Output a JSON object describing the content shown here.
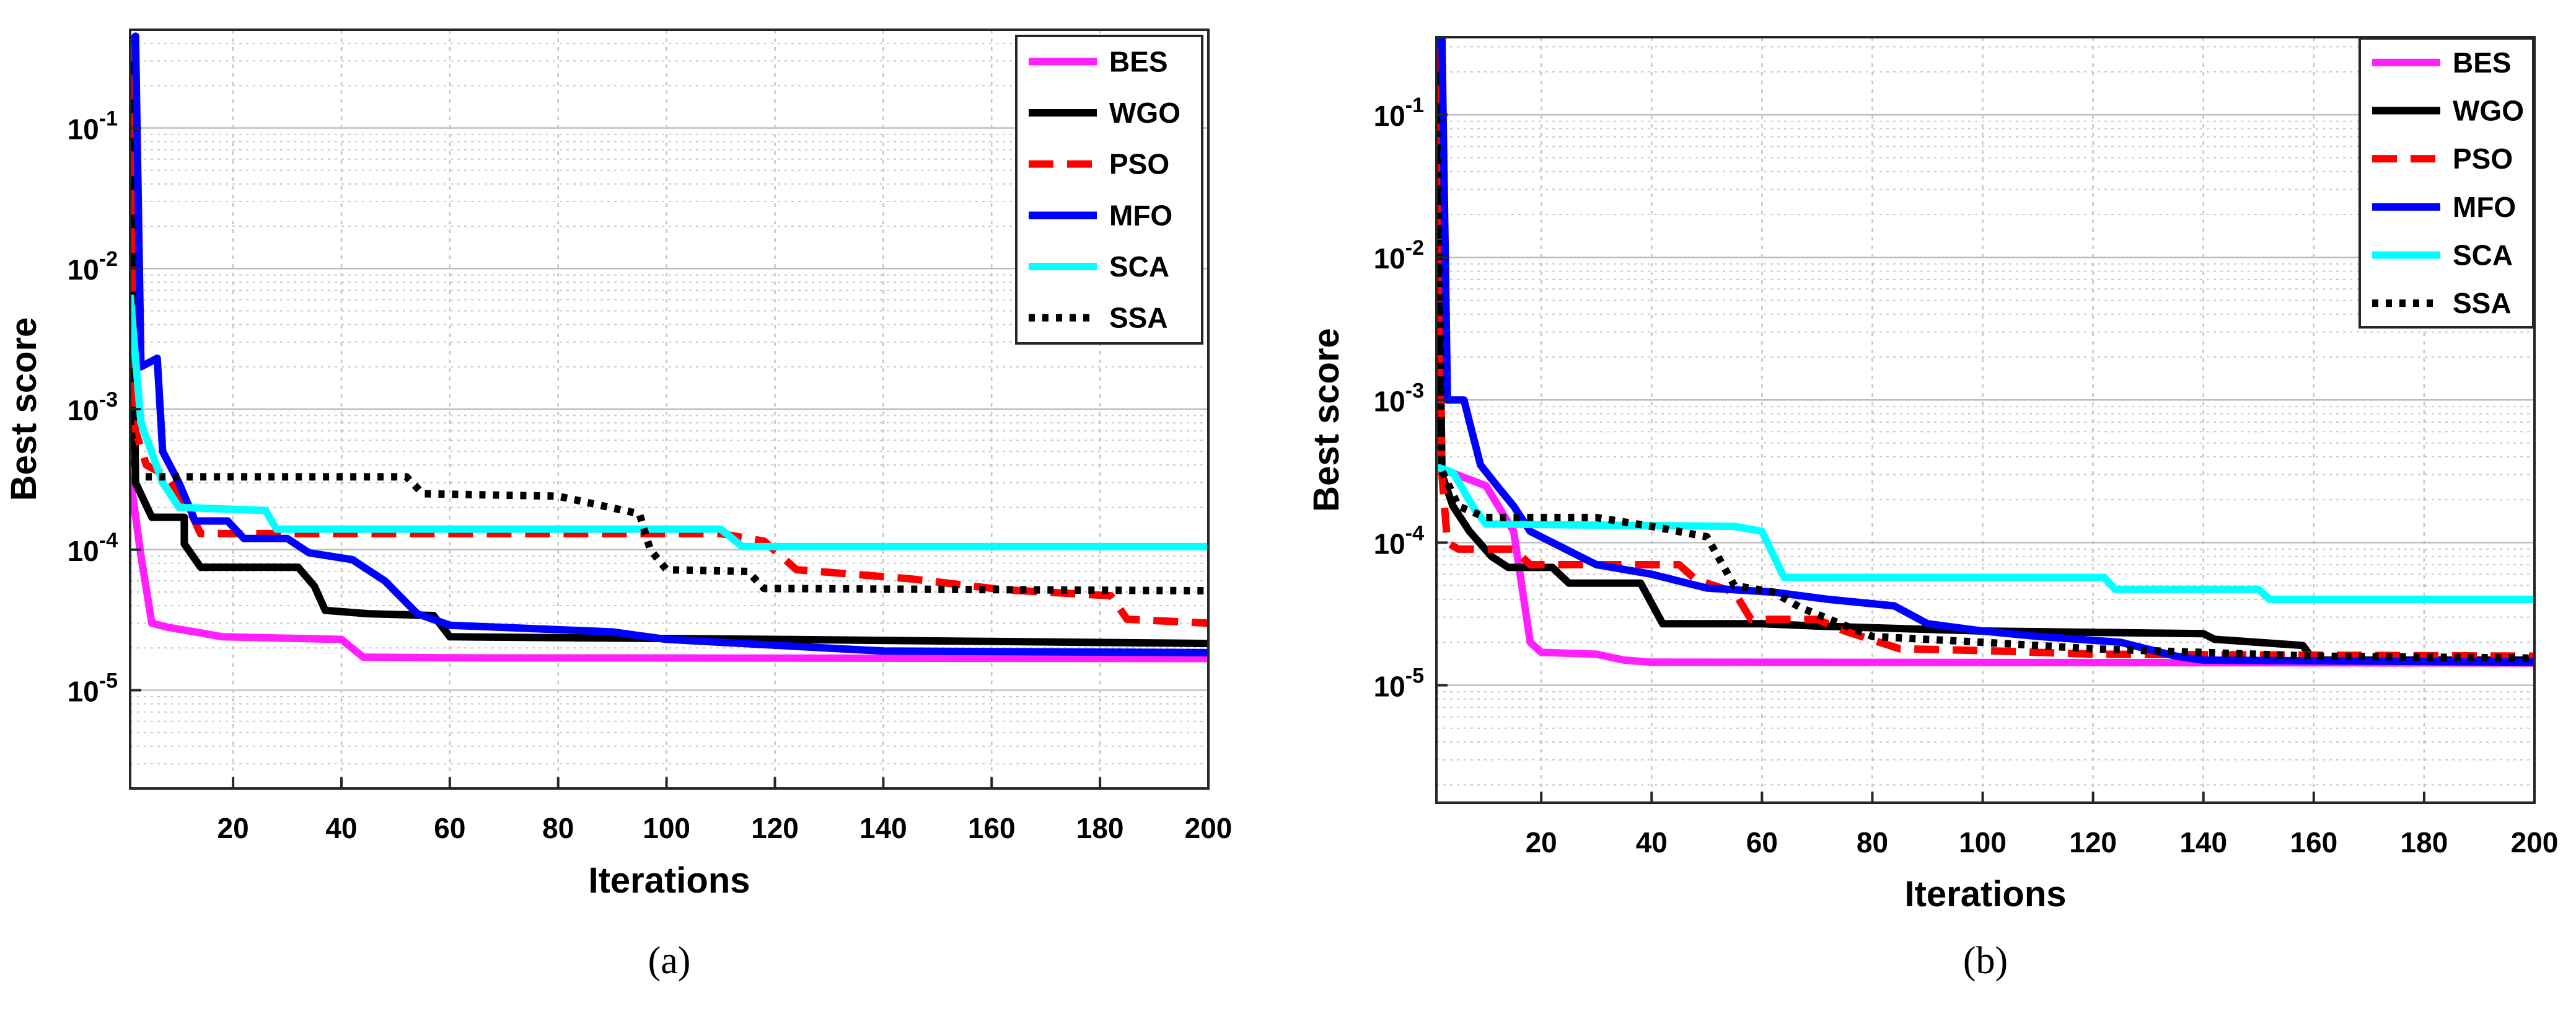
{
  "chart_data": [
    {
      "type": "line",
      "panel": "a",
      "caption": "(a)",
      "xlabel": "Iterations",
      "ylabel": "Best score",
      "yscale": "log",
      "xlim": [
        1,
        200
      ],
      "ylim": [
        2e-06,
        0.5
      ],
      "grid": true,
      "legend_position": "top-right",
      "xticks": [
        20,
        40,
        60,
        80,
        100,
        120,
        140,
        160,
        180,
        200
      ],
      "yticks": [
        {
          "exp": -5,
          "value": 1e-05
        },
        {
          "exp": -4,
          "value": 0.0001
        },
        {
          "exp": -3,
          "value": 0.001
        },
        {
          "exp": -2,
          "value": 0.01
        },
        {
          "exp": -1,
          "value": 0.1
        }
      ],
      "series": [
        {
          "name": "BES",
          "color": "#ff1fff",
          "dash": "solid",
          "points": [
            [
              1,
              0.00033
            ],
            [
              3,
              9e-05
            ],
            [
              5,
              3e-05
            ],
            [
              8,
              2.8e-05
            ],
            [
              13,
              2.6e-05
            ],
            [
              18,
              2.4e-05
            ],
            [
              40,
              2.3e-05
            ],
            [
              44,
              1.72e-05
            ],
            [
              60,
              1.7e-05
            ],
            [
              200,
              1.68e-05
            ]
          ]
        },
        {
          "name": "WGO",
          "color": "#000000",
          "dash": "solid",
          "points": [
            [
              1,
              0.4
            ],
            [
              2,
              0.0003
            ],
            [
              5,
              0.00017
            ],
            [
              11,
              0.00017
            ],
            [
              11,
              0.00011
            ],
            [
              14,
              7.5e-05
            ],
            [
              32,
              7.5e-05
            ],
            [
              35,
              5.5e-05
            ],
            [
              37,
              3.7e-05
            ],
            [
              45,
              3.5e-05
            ],
            [
              57,
              3.4e-05
            ],
            [
              60,
              2.4e-05
            ],
            [
              120,
              2.3e-05
            ],
            [
              200,
              2.15e-05
            ]
          ]
        },
        {
          "name": "PSO",
          "color": "#ff0000",
          "dash": "dash",
          "points": [
            [
              1,
              0.45
            ],
            [
              2,
              0.0007
            ],
            [
              4,
              0.0004
            ],
            [
              8,
              0.00033
            ],
            [
              12,
              0.00019
            ],
            [
              14,
              0.00013
            ],
            [
              110,
              0.00013
            ],
            [
              118,
              0.000115
            ],
            [
              124,
              7.2e-05
            ],
            [
              145,
              6.2e-05
            ],
            [
              162,
              5.2e-05
            ],
            [
              182,
              4.7e-05
            ],
            [
              185,
              3.2e-05
            ],
            [
              200,
              3e-05
            ]
          ]
        },
        {
          "name": "MFO",
          "color": "#0000ff",
          "dash": "solid",
          "points": [
            [
              1,
              0.4
            ],
            [
              2,
              0.45
            ],
            [
              3,
              0.002
            ],
            [
              6,
              0.0023
            ],
            [
              7,
              0.0005
            ],
            [
              10,
              0.0003
            ],
            [
              13,
              0.00016
            ],
            [
              19,
              0.00016
            ],
            [
              22,
              0.00012
            ],
            [
              30,
              0.00012
            ],
            [
              34,
              9.5e-05
            ],
            [
              42,
              8.5e-05
            ],
            [
              48,
              6e-05
            ],
            [
              54,
              3.5e-05
            ],
            [
              60,
              2.9e-05
            ],
            [
              90,
              2.6e-05
            ],
            [
              100,
              2.3e-05
            ],
            [
              140,
              1.9e-05
            ],
            [
              200,
              1.85e-05
            ]
          ]
        },
        {
          "name": "SCA",
          "color": "#00ffff",
          "dash": "solid",
          "points": [
            [
              1,
              0.0065
            ],
            [
              3,
              0.0008
            ],
            [
              7,
              0.0003
            ],
            [
              10,
              0.0002
            ],
            [
              26,
              0.00019
            ],
            [
              28,
              0.00014
            ],
            [
              110,
              0.00014
            ],
            [
              114,
              0.000105
            ],
            [
              200,
              0.000105
            ]
          ]
        },
        {
          "name": "SSA",
          "color": "#000000",
          "dash": "dot",
          "points": [
            [
              1,
              0.00085
            ],
            [
              2,
              0.00033
            ],
            [
              52,
              0.00033
            ],
            [
              55,
              0.00025
            ],
            [
              80,
              0.00024
            ],
            [
              95,
              0.00018
            ],
            [
              97,
              0.0001
            ],
            [
              100,
              7.2e-05
            ],
            [
              115,
              7e-05
            ],
            [
              118,
              5.3e-05
            ],
            [
              200,
              5.1e-05
            ]
          ]
        }
      ]
    },
    {
      "type": "line",
      "panel": "b",
      "caption": "(b)",
      "xlabel": "Iterations",
      "ylabel": "Best score",
      "yscale": "log",
      "xlim": [
        1,
        200
      ],
      "ylim": [
        1.5e-06,
        0.35
      ],
      "grid": true,
      "legend_position": "top-right",
      "xticks": [
        20,
        40,
        60,
        80,
        100,
        120,
        140,
        160,
        180,
        200
      ],
      "yticks": [
        {
          "exp": -5,
          "value": 1e-05
        },
        {
          "exp": -4,
          "value": 0.0001
        },
        {
          "exp": -3,
          "value": 0.001
        },
        {
          "exp": -2,
          "value": 0.01
        },
        {
          "exp": -1,
          "value": 0.1
        }
      ],
      "series": [
        {
          "name": "BES",
          "color": "#ff1fff",
          "dash": "solid",
          "points": [
            [
              1,
              0.00034
            ],
            [
              10,
              0.00025
            ],
            [
              15,
              0.00012
            ],
            [
              18,
              2e-05
            ],
            [
              20,
              1.7e-05
            ],
            [
              30,
              1.65e-05
            ],
            [
              35,
              1.5e-05
            ],
            [
              40,
              1.45e-05
            ],
            [
              200,
              1.43e-05
            ]
          ]
        },
        {
          "name": "WGO",
          "color": "#000000",
          "dash": "solid",
          "points": [
            [
              1,
              0.3
            ],
            [
              2,
              0.0003
            ],
            [
              4,
              0.00018
            ],
            [
              7,
              0.00012
            ],
            [
              11,
              8e-05
            ],
            [
              14,
              6.7e-05
            ],
            [
              22,
              6.7e-05
            ],
            [
              25,
              5.2e-05
            ],
            [
              38,
              5.2e-05
            ],
            [
              42,
              2.7e-05
            ],
            [
              60,
              2.7e-05
            ],
            [
              70,
              2.6e-05
            ],
            [
              100,
              2.4e-05
            ],
            [
              140,
              2.3e-05
            ],
            [
              142,
              2.1e-05
            ],
            [
              158,
              1.9e-05
            ],
            [
              160,
              1.5e-05
            ],
            [
              200,
              1.5e-05
            ]
          ]
        },
        {
          "name": "PSO",
          "color": "#ff0000",
          "dash": "dash",
          "points": [
            [
              1,
              0.3
            ],
            [
              2,
              0.0003
            ],
            [
              3,
              0.0001
            ],
            [
              5,
              9e-05
            ],
            [
              15,
              9e-05
            ],
            [
              18,
              7e-05
            ],
            [
              45,
              7e-05
            ],
            [
              48,
              5.5e-05
            ],
            [
              55,
              4.5e-05
            ],
            [
              58,
              2.9e-05
            ],
            [
              70,
              2.9e-05
            ],
            [
              75,
              2.4e-05
            ],
            [
              85,
              1.8e-05
            ],
            [
              100,
              1.75e-05
            ],
            [
              120,
              1.65e-05
            ],
            [
              200,
              1.6e-05
            ]
          ]
        },
        {
          "name": "MFO",
          "color": "#0000ff",
          "dash": "solid",
          "points": [
            [
              1,
              0.3
            ],
            [
              2,
              0.35
            ],
            [
              3,
              0.001
            ],
            [
              6,
              0.001
            ],
            [
              7,
              0.0007
            ],
            [
              9,
              0.00035
            ],
            [
              12,
              0.00025
            ],
            [
              15,
              0.00018
            ],
            [
              18,
              0.00012
            ],
            [
              30,
              7e-05
            ],
            [
              40,
              6e-05
            ],
            [
              50,
              4.8e-05
            ],
            [
              62,
              4.5e-05
            ],
            [
              72,
              4e-05
            ],
            [
              84,
              3.6e-05
            ],
            [
              90,
              2.7e-05
            ],
            [
              100,
              2.4e-05
            ],
            [
              110,
              2.2e-05
            ],
            [
              125,
              2e-05
            ],
            [
              135,
              1.6e-05
            ],
            [
              140,
              1.5e-05
            ],
            [
              200,
              1.45e-05
            ]
          ]
        },
        {
          "name": "SCA",
          "color": "#00ffff",
          "dash": "solid",
          "points": [
            [
              1,
              0.00034
            ],
            [
              4,
              0.00031
            ],
            [
              8,
              0.00017
            ],
            [
              10,
              0.000135
            ],
            [
              55,
              0.00013
            ],
            [
              60,
              0.00012
            ],
            [
              64,
              5.7e-05
            ],
            [
              122,
              5.7e-05
            ],
            [
              124,
              4.7e-05
            ],
            [
              150,
              4.7e-05
            ],
            [
              152,
              4e-05
            ],
            [
              200,
              4e-05
            ]
          ]
        },
        {
          "name": "SSA",
          "color": "#000000",
          "dash": "dot",
          "points": [
            [
              1,
              0.12
            ],
            [
              2,
              0.00032
            ],
            [
              5,
              0.00018
            ],
            [
              10,
              0.00015
            ],
            [
              30,
              0.00015
            ],
            [
              40,
              0.00013
            ],
            [
              50,
              0.00011
            ],
            [
              55,
              5e-05
            ],
            [
              62,
              4.5e-05
            ],
            [
              67,
              3.5e-05
            ],
            [
              80,
              2.2e-05
            ],
            [
              100,
              2e-05
            ],
            [
              120,
              1.8e-05
            ],
            [
              160,
              1.6e-05
            ],
            [
              200,
              1.55e-05
            ]
          ]
        }
      ]
    }
  ]
}
